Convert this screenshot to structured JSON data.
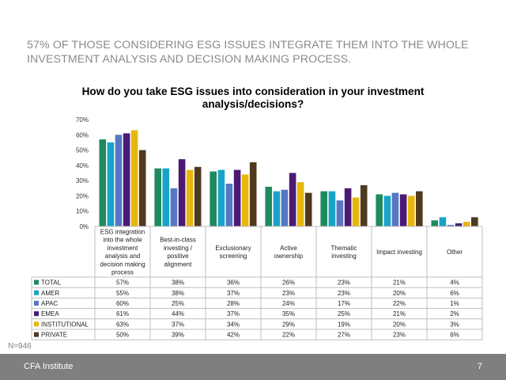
{
  "headline": "57% of those considering ESG issues integrate them into the whole investment analysis and decision making process.",
  "sample_note": "N=946",
  "footer": {
    "brand": "CFA Institute",
    "page_number": "7"
  },
  "chart_data": {
    "type": "bar",
    "title": "How do you take ESG issues into consideration in your investment analysis/decisions?",
    "xlabel": "",
    "ylabel": "",
    "ylim": [
      0,
      70
    ],
    "yticks": [
      "0%",
      "10%",
      "20%",
      "30%",
      "40%",
      "50%",
      "60%",
      "70%"
    ],
    "grid": false,
    "legend": "data table below chart",
    "categories": [
      [
        "ESG integration",
        "into the whole",
        "investment",
        "analysis and",
        "decision making",
        "process"
      ],
      [
        "Best-in-class",
        "investing /",
        "positive",
        "alignment"
      ],
      [
        "Exclusionary",
        "screening"
      ],
      [
        "Active",
        "ownership"
      ],
      [
        "Thematic",
        "investing"
      ],
      [
        "Impact investing"
      ],
      [
        "Other"
      ]
    ],
    "series": [
      {
        "name": "TOTAL",
        "color": "#1e8a5e",
        "values": [
          57,
          38,
          36,
          26,
          23,
          21,
          4
        ],
        "labels": [
          "57%",
          "38%",
          "36%",
          "26%",
          "23%",
          "21%",
          "4%"
        ]
      },
      {
        "name": "AMER",
        "color": "#19a3c9",
        "values": [
          55,
          38,
          37,
          23,
          23,
          20,
          6
        ],
        "labels": [
          "55%",
          "38%",
          "37%",
          "23%",
          "23%",
          "20%",
          "6%"
        ]
      },
      {
        "name": "APAC",
        "color": "#5577c4",
        "values": [
          60,
          25,
          28,
          24,
          17,
          22,
          1
        ],
        "labels": [
          "60%",
          "25%",
          "28%",
          "24%",
          "17%",
          "22%",
          "1%"
        ]
      },
      {
        "name": "EMEA",
        "color": "#4b1a73",
        "values": [
          61,
          44,
          37,
          35,
          25,
          21,
          2
        ],
        "labels": [
          "61%",
          "44%",
          "37%",
          "35%",
          "25%",
          "21%",
          "2%"
        ]
      },
      {
        "name": "INSTITUTIONAL",
        "color": "#e8b70c",
        "values": [
          63,
          37,
          34,
          29,
          19,
          20,
          3
        ],
        "labels": [
          "63%",
          "37%",
          "34%",
          "29%",
          "19%",
          "20%",
          "3%"
        ]
      },
      {
        "name": "PRIVATE",
        "color": "#4f3a1e",
        "values": [
          50,
          39,
          42,
          22,
          27,
          23,
          6
        ],
        "labels": [
          "50%",
          "39%",
          "42%",
          "22%",
          "27%",
          "23%",
          "6%"
        ]
      }
    ]
  }
}
